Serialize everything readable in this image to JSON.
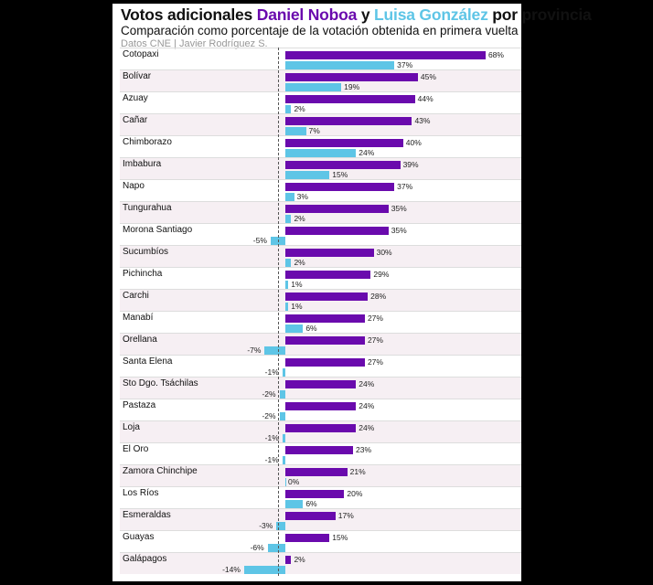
{
  "chart_data": {
    "type": "bar",
    "orientation": "horizontal",
    "title_parts": [
      "Votos adicionales ",
      "Daniel Noboa",
      " y ",
      "Luisa González",
      " por provincia"
    ],
    "subtitle": "Comparación como porcentaje de la votación obtenida en primera vuelta",
    "source": "Datos CNE | Javier Rodríguez S.",
    "colors": {
      "Daniel Noboa": "#6a0aad",
      "Luisa González": "#5ec5e6"
    },
    "categories": [
      "Cotopaxi",
      "Bolívar",
      "Azuay",
      "Cañar",
      "Chimborazo",
      "Imbabura",
      "Napo",
      "Tungurahua",
      "Morona Santiago",
      "Sucumbíos",
      "Pichincha",
      "Carchi",
      "Manabí",
      "Orellana",
      "Santa Elena",
      "Sto Dgo. Tsáchilas",
      "Pastaza",
      "Loja",
      "El Oro",
      "Zamora Chinchipe",
      "Los Ríos",
      "Esmeraldas",
      "Guayas",
      "Galápagos"
    ],
    "series": [
      {
        "name": "Daniel Noboa",
        "values": [
          68,
          45,
          44,
          43,
          40,
          39,
          37,
          35,
          35,
          30,
          29,
          28,
          27,
          27,
          27,
          24,
          24,
          24,
          23,
          21,
          20,
          17,
          15,
          2
        ]
      },
      {
        "name": "Luisa González",
        "values": [
          37,
          19,
          2,
          7,
          24,
          15,
          3,
          2,
          -5,
          2,
          1,
          1,
          6,
          -7,
          -1,
          -2,
          -2,
          -1,
          -1,
          0,
          6,
          -3,
          -6,
          -14
        ]
      }
    ],
    "unit": "%"
  }
}
